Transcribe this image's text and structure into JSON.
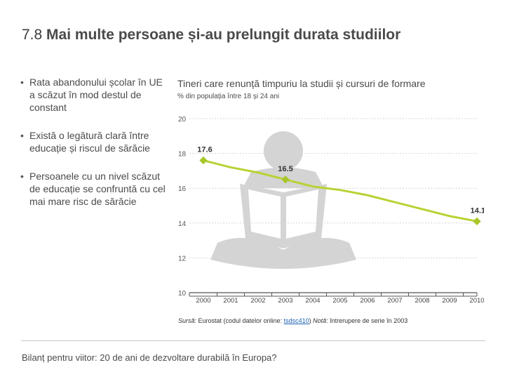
{
  "title": {
    "number": "7.8",
    "text": "Mai multe persoane și-au prelungit durata studiilor"
  },
  "bullets": [
    "Rata abandonului școlar în UE a scăzut în mod destul de constant",
    "Există o legătură clară între educație și riscul de sărăcie",
    "Persoanele cu un nivel scăzut de educație se confruntă cu cel mai mare risc de sărăcie"
  ],
  "source": {
    "label": "Sursă",
    "text": ": Eurostat (codul datelor online: ",
    "code": "tsdsc410",
    "after": ") ",
    "note_label": "Notă",
    "note_text": ": întrerupere de serie în 2003"
  },
  "footer": "Bilanț pentru viitor: 20 de ani de dezvoltare durabilă în Europa?",
  "colors": {
    "line": "#b8d234",
    "marker": "#a8c62a",
    "grid": "#d6d6d6",
    "axis": "#555555",
    "icon": "#d4d4d4"
  },
  "chart_data": {
    "type": "line",
    "title": "Tineri care renunță timpuriu la studii și cursuri de formare",
    "subtitle": "% din populația între 18 și 24 ani",
    "x": [
      "2000",
      "2001",
      "2002",
      "2003",
      "2004",
      "2005",
      "2006",
      "2007",
      "2008",
      "2009",
      "2010"
    ],
    "series": [
      {
        "values": [
          17.6,
          17.2,
          16.9,
          16.5,
          16.1,
          15.9,
          15.6,
          15.2,
          14.8,
          14.4,
          14.1
        ]
      }
    ],
    "labeled_points": [
      {
        "x": "2000",
        "label": "17.6"
      },
      {
        "x": "2003",
        "label": "16.5"
      },
      {
        "x": "2010",
        "label": "14.1"
      }
    ],
    "yticks": [
      "20",
      "18",
      "16",
      "14",
      "12",
      "10"
    ],
    "ylim": [
      10,
      20
    ],
    "grid": true,
    "legend": "none",
    "background_icon": "reading-person-icon"
  }
}
